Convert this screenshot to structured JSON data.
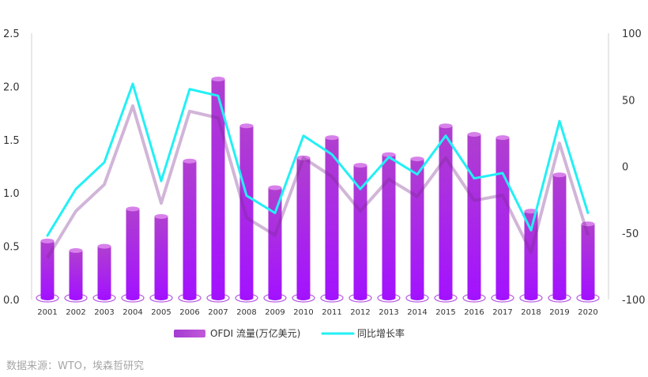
{
  "chart_data": {
    "type": "bar",
    "categories": [
      "2001",
      "2002",
      "2003",
      "2004",
      "2005",
      "2006",
      "2007",
      "2008",
      "2009",
      "2010",
      "2011",
      "2012",
      "2013",
      "2014",
      "2015",
      "2016",
      "2017",
      "2018",
      "2019",
      "2020"
    ],
    "series": [
      {
        "name": "OFDI 流量(万亿美元)",
        "type": "bar",
        "axis": "left",
        "values": [
          0.55,
          0.46,
          0.5,
          0.85,
          0.78,
          1.3,
          2.07,
          1.63,
          1.05,
          1.33,
          1.52,
          1.26,
          1.36,
          1.32,
          1.63,
          1.55,
          1.52,
          0.83,
          1.17,
          0.71
        ]
      },
      {
        "name": "同比增长率",
        "type": "line",
        "axis": "right",
        "values": [
          -52,
          -17,
          3,
          62,
          -11,
          58,
          53,
          -22,
          -35,
          23,
          9,
          -17,
          7,
          -6,
          23,
          -9,
          -5,
          -48,
          34,
          -35
        ]
      }
    ],
    "ylim": [
      0,
      2.5
    ],
    "y2lim": [
      -100,
      100
    ],
    "yticks": [
      "0.0",
      "0.5",
      "1.0",
      "1.5",
      "2.0",
      "2.5"
    ],
    "y2ticks": [
      "-100",
      "-50",
      "0",
      "50",
      "100"
    ],
    "legend_position": "bottom",
    "colors": {
      "bar_top": "#a43bd0",
      "bar_bottom": "#a01cff",
      "line": "#22f0f5"
    }
  },
  "source": "数据来源：WTO，埃森哲研究"
}
